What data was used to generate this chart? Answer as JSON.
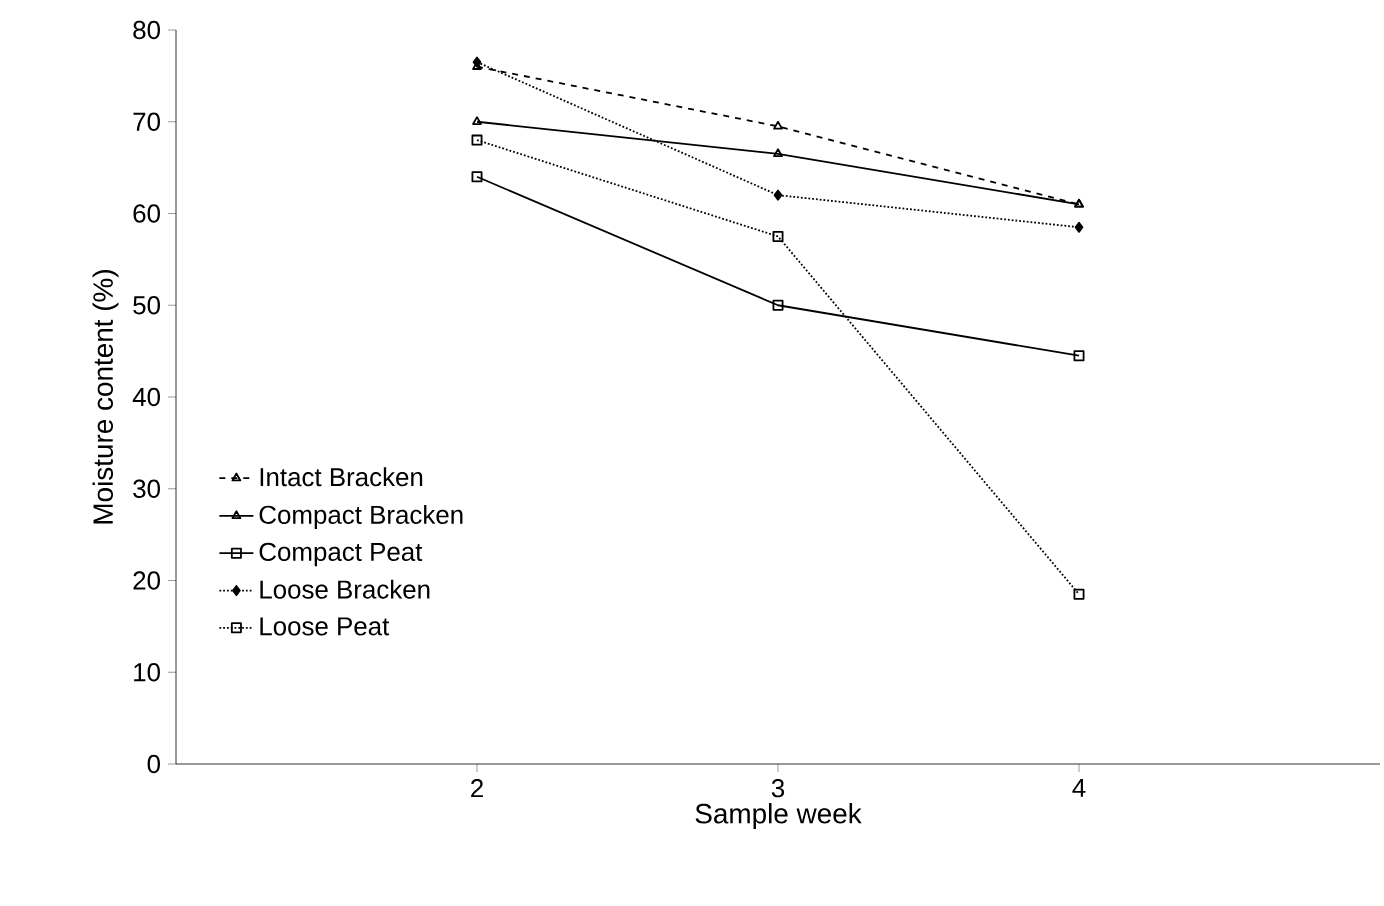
{
  "chart_data": {
    "type": "line",
    "xlabel": "Sample week",
    "ylabel": "Moisture content (%)",
    "x": [
      2,
      3,
      4
    ],
    "xlim": [
      1,
      5
    ],
    "xticks": [
      2,
      3,
      4
    ],
    "ylim": [
      0,
      80
    ],
    "yticks": [
      0,
      10,
      20,
      30,
      40,
      50,
      60,
      70,
      80
    ],
    "legend": "left",
    "grid": false,
    "series": [
      {
        "name": "Intact Bracken",
        "color": "#000000",
        "marker": "triangle",
        "line_style": "dashed",
        "values": [
          76,
          69.5,
          61
        ]
      },
      {
        "name": "Compact Bracken",
        "color": "#000000",
        "marker": "triangle",
        "line_style": "solid",
        "values": [
          70,
          66.5,
          61
        ]
      },
      {
        "name": "Compact Peat",
        "color": "#000000",
        "marker": "square",
        "line_style": "solid",
        "values": [
          64,
          50,
          44.5
        ]
      },
      {
        "name": "Loose Bracken",
        "color": "#000000",
        "marker": "diamond",
        "line_style": "dotted",
        "values": [
          76.5,
          62,
          58.5
        ]
      },
      {
        "name": "Loose Peat",
        "color": "#000000",
        "marker": "square",
        "line_style": "dotted",
        "values": [
          68,
          57.5,
          18.5
        ]
      }
    ]
  }
}
